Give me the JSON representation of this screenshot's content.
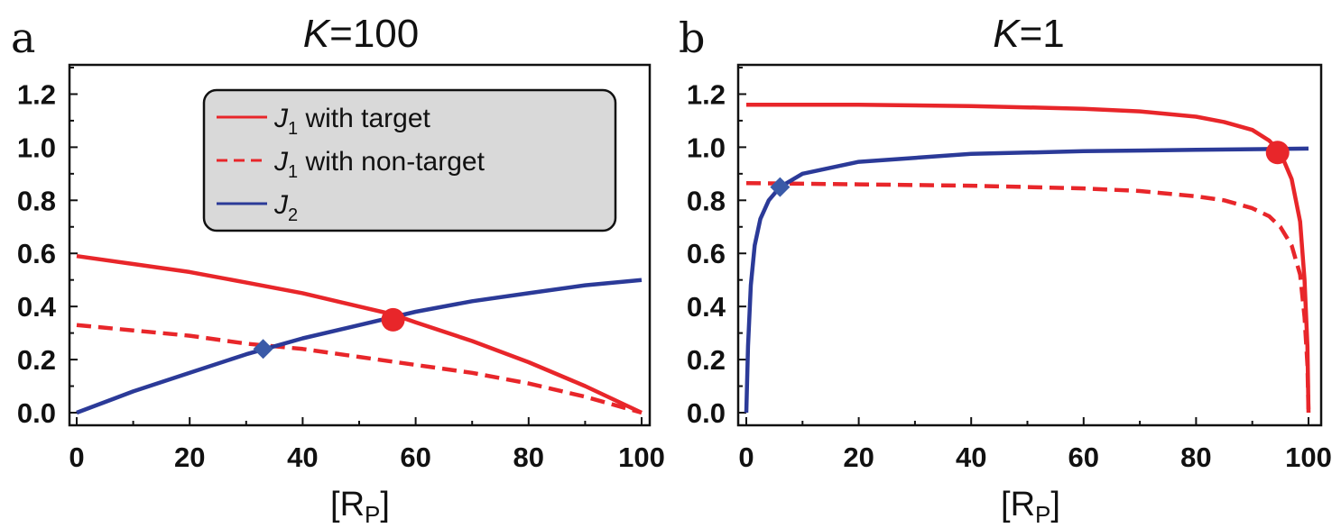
{
  "chart_data": [
    {
      "type": "line",
      "panel_label": "a",
      "title": "K=100",
      "title_var": "K",
      "title_rest": "=100",
      "xlabel": "[R",
      "xlabel_sub": "P",
      "xlabel_close": "]",
      "xlim": [
        0,
        100
      ],
      "ylim": [
        0,
        1.3
      ],
      "xticks": [
        "0",
        "20",
        "40",
        "60",
        "80",
        "100"
      ],
      "xtick_values": [
        0,
        20,
        40,
        60,
        80,
        100
      ],
      "yticks": [
        "0.0",
        "0.2",
        "0.4",
        "0.6",
        "0.8",
        "1.0",
        "1.2"
      ],
      "ytick_values": [
        0,
        0.2,
        0.4,
        0.6,
        0.8,
        1.0,
        1.2
      ],
      "legend": {
        "position": "top-center",
        "entries": [
          {
            "var": "J",
            "sub": "1",
            "text": " with target",
            "style": "solid",
            "color": "#e8262a"
          },
          {
            "var": "J",
            "sub": "1",
            "text": " with non-target",
            "style": "dashed",
            "color": "#e8262a"
          },
          {
            "var": "J",
            "sub": "2",
            "text": "",
            "style": "solid",
            "color": "#2b3a98"
          }
        ]
      },
      "series": [
        {
          "key": "j1_target",
          "color": "#e8262a",
          "style": "solid",
          "x": [
            0,
            10,
            20,
            30,
            40,
            50,
            56,
            60,
            70,
            80,
            90,
            100
          ],
          "y": [
            0.59,
            0.56,
            0.53,
            0.49,
            0.45,
            0.4,
            0.37,
            0.34,
            0.27,
            0.19,
            0.1,
            0.0
          ]
        },
        {
          "key": "j1_nontarget",
          "color": "#e8262a",
          "style": "dashed",
          "x": [
            0,
            10,
            20,
            30,
            40,
            50,
            60,
            70,
            80,
            90,
            100
          ],
          "y": [
            0.33,
            0.31,
            0.29,
            0.26,
            0.24,
            0.21,
            0.18,
            0.15,
            0.11,
            0.06,
            0.0
          ]
        },
        {
          "key": "j2",
          "color": "#2b3a98",
          "style": "solid",
          "x": [
            0,
            10,
            20,
            30,
            40,
            50,
            60,
            70,
            80,
            90,
            100
          ],
          "y": [
            0.0,
            0.08,
            0.15,
            0.22,
            0.28,
            0.33,
            0.38,
            0.42,
            0.45,
            0.48,
            0.5
          ]
        }
      ],
      "markers": [
        {
          "shape": "circle",
          "x": 56,
          "y": 0.35,
          "color": "#e8262a"
        },
        {
          "shape": "diamond",
          "x": 33,
          "y": 0.24,
          "color": "#3a5aa8"
        }
      ]
    },
    {
      "type": "line",
      "panel_label": "b",
      "title": "K=1",
      "title_var": "K",
      "title_rest": "=1",
      "xlabel": "[R",
      "xlabel_sub": "P",
      "xlabel_close": "]",
      "xlim": [
        0,
        100
      ],
      "ylim": [
        0,
        1.3
      ],
      "xticks": [
        "0",
        "20",
        "40",
        "60",
        "80",
        "100"
      ],
      "xtick_values": [
        0,
        20,
        40,
        60,
        80,
        100
      ],
      "yticks": [
        "0.0",
        "0.2",
        "0.4",
        "0.6",
        "0.8",
        "1.0",
        "1.2"
      ],
      "ytick_values": [
        0,
        0.2,
        0.4,
        0.6,
        0.8,
        1.0,
        1.2
      ],
      "series": [
        {
          "key": "j1_target",
          "color": "#e8262a",
          "style": "solid",
          "x": [
            0,
            20,
            40,
            60,
            70,
            80,
            85,
            90,
            93,
            95,
            97,
            98.5,
            99.3,
            99.8,
            100
          ],
          "y": [
            1.16,
            1.16,
            1.155,
            1.145,
            1.135,
            1.115,
            1.095,
            1.065,
            1.025,
            0.98,
            0.88,
            0.72,
            0.5,
            0.25,
            0.0
          ]
        },
        {
          "key": "j1_nontarget",
          "color": "#e8262a",
          "style": "dashed",
          "x": [
            0,
            20,
            40,
            60,
            70,
            80,
            85,
            90,
            93,
            95,
            97,
            98.5,
            99.3,
            99.8,
            100
          ],
          "y": [
            0.865,
            0.86,
            0.855,
            0.845,
            0.835,
            0.815,
            0.8,
            0.77,
            0.74,
            0.7,
            0.63,
            0.52,
            0.36,
            0.18,
            0.0
          ]
        },
        {
          "key": "j2",
          "color": "#2b3a98",
          "style": "solid",
          "x": [
            0,
            0.3,
            0.8,
            1.5,
            2.5,
            4,
            6,
            10,
            20,
            40,
            60,
            80,
            100
          ],
          "y": [
            0.0,
            0.25,
            0.48,
            0.63,
            0.73,
            0.8,
            0.85,
            0.9,
            0.945,
            0.975,
            0.985,
            0.99,
            0.995
          ]
        }
      ],
      "markers": [
        {
          "shape": "circle",
          "x": 94.5,
          "y": 0.98,
          "color": "#e8262a"
        },
        {
          "shape": "diamond",
          "x": 6,
          "y": 0.85,
          "color": "#3a5aa8"
        }
      ]
    }
  ]
}
